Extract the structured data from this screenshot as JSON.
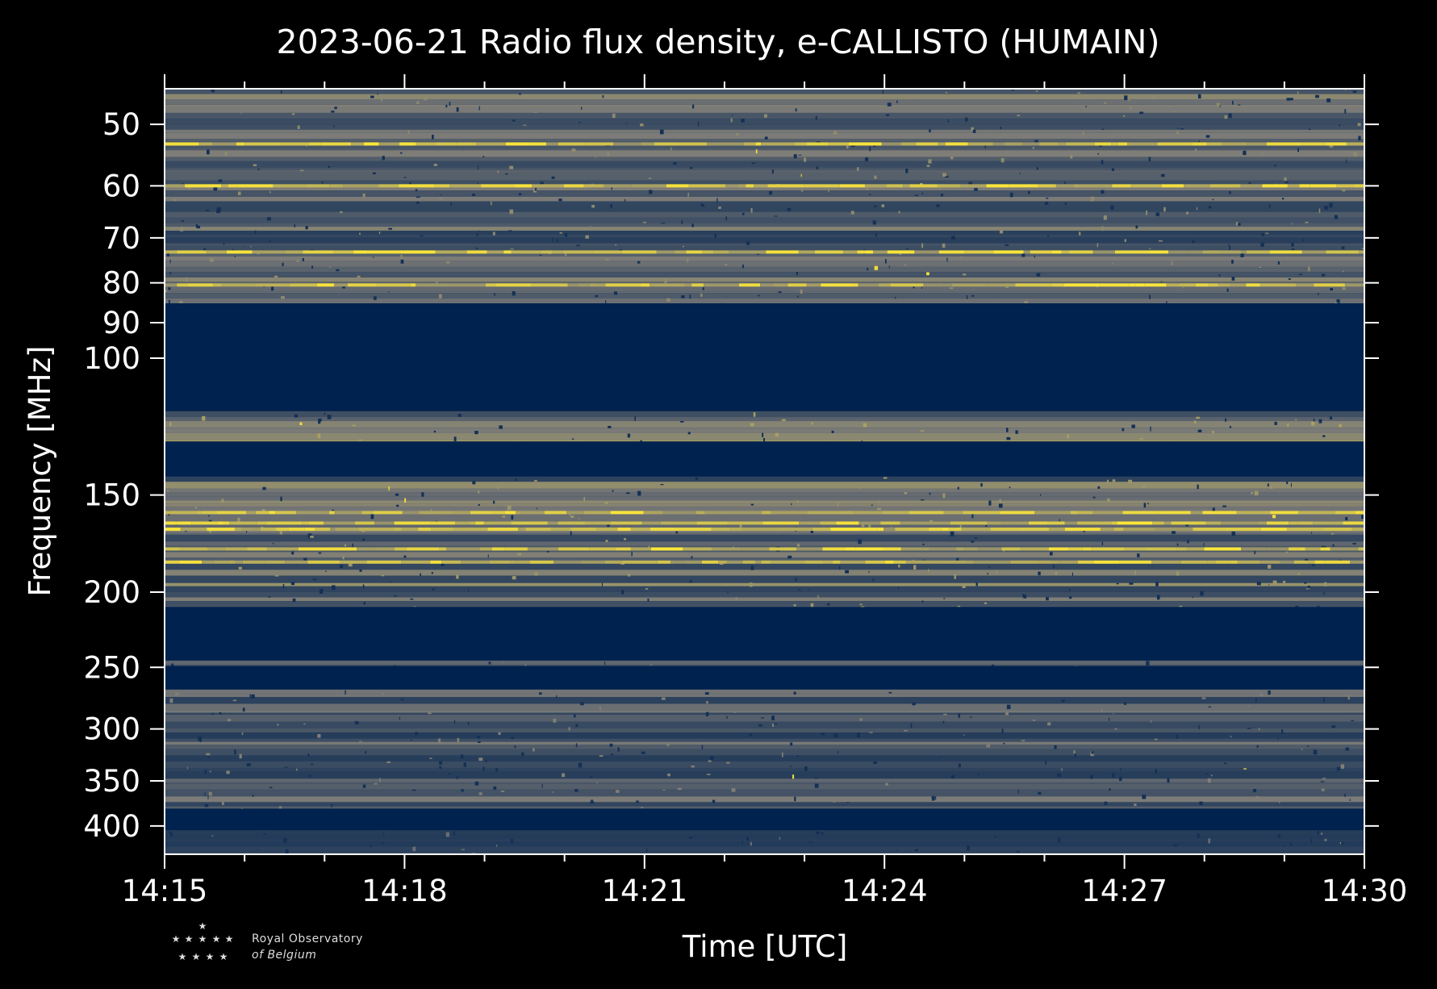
{
  "chart_data": {
    "type": "heatmap",
    "title": "2023-06-21 Radio flux density, e-CALLISTO (HUMAIN)",
    "xlabel": "Time [UTC]",
    "ylabel": "Frequency [MHz]",
    "x_range": [
      "14:15",
      "14:30"
    ],
    "x_ticks": [
      "14:15",
      "14:18",
      "14:21",
      "14:24",
      "14:27",
      "14:30"
    ],
    "y_scale": "log",
    "y_range": [
      45,
      435
    ],
    "y_ticks": [
      50,
      60,
      70,
      80,
      90,
      100,
      150,
      200,
      250,
      300,
      350,
      400
    ],
    "y_inverted": true,
    "colormap": "cividis",
    "colors": {
      "background": "#000000",
      "low": "#00224e",
      "mid": "#7c7b78",
      "high": "#fee838"
    },
    "bands": [
      {
        "f_min": 45,
        "f_max": 85,
        "kind": "noise",
        "level": 0.45
      },
      {
        "f_min": 85,
        "f_max": 117,
        "kind": "empty",
        "level": 0.0
      },
      {
        "f_min": 117,
        "f_max": 128,
        "kind": "noise",
        "level": 0.55
      },
      {
        "f_min": 128,
        "f_max": 142,
        "kind": "empty",
        "level": 0.0
      },
      {
        "f_min": 142,
        "f_max": 209,
        "kind": "noise",
        "level": 0.5
      },
      {
        "f_min": 209,
        "f_max": 245,
        "kind": "empty",
        "level": 0.0
      },
      {
        "f_min": 245,
        "f_max": 249,
        "kind": "noise",
        "level": 0.35
      },
      {
        "f_min": 249,
        "f_max": 267,
        "kind": "empty",
        "level": 0.0
      },
      {
        "f_min": 267,
        "f_max": 380,
        "kind": "noise",
        "level": 0.4
      },
      {
        "f_min": 380,
        "f_max": 405,
        "kind": "empty",
        "level": 0.0
      },
      {
        "f_min": 405,
        "f_max": 435,
        "kind": "noise",
        "level": 0.3
      }
    ],
    "persistent_lines_mhz": [
      53,
      60,
      73,
      80.5,
      158,
      163,
      166,
      176,
      183
    ],
    "logo": {
      "line1": "Royal Observatory",
      "line2": "of Belgium"
    }
  }
}
